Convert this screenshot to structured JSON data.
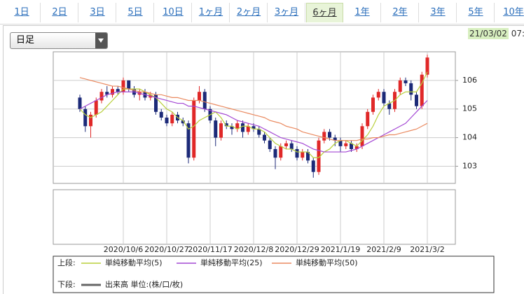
{
  "tabs": [
    {
      "label": "1日"
    },
    {
      "label": "2日"
    },
    {
      "label": "3日"
    },
    {
      "label": "5日"
    },
    {
      "label": "10日"
    },
    {
      "label": "1ヶ月"
    },
    {
      "label": "2ヶ月"
    },
    {
      "label": "3ヶ月"
    },
    {
      "label": "6ヶ月",
      "selected": true
    },
    {
      "label": "1年"
    },
    {
      "label": "2年"
    },
    {
      "label": "3年"
    },
    {
      "label": "5年"
    },
    {
      "label": "10年"
    }
  ],
  "dropdown": "日足",
  "timestamp": {
    "date": "21/03/02",
    "time": "07:"
  },
  "chart_data": {
    "type": "candlestick",
    "categories": [
      null,
      null,
      null,
      null,
      null,
      null,
      null,
      null,
      "2020/10/6",
      null,
      null,
      null,
      null,
      null,
      null,
      null,
      "2020/10/27",
      null,
      null,
      null,
      null,
      null,
      null,
      null,
      "2020/11/17",
      null,
      null,
      null,
      null,
      null,
      null,
      null,
      "2020/12/8",
      null,
      null,
      null,
      null,
      null,
      null,
      null,
      "2020/12/29",
      null,
      null,
      null,
      null,
      null,
      null,
      null,
      "2021/1/19",
      null,
      null,
      null,
      null,
      null,
      null,
      null,
      "2021/2/9",
      null,
      null,
      null,
      null,
      null,
      null,
      null,
      "2021/3/2"
    ],
    "open": [
      105.4,
      105.0,
      104.4,
      104.8,
      105.3,
      105.6,
      105.5,
      105.7,
      105.6,
      106.0,
      105.7,
      105.5,
      105.6,
      105.4,
      105.5,
      104.9,
      104.7,
      104.5,
      104.8,
      104.6,
      104.5,
      103.3,
      105.3,
      105.6,
      105.0,
      104.6,
      104.0,
      104.5,
      104.4,
      104.3,
      104.5,
      104.2,
      104.4,
      104.3,
      104.1,
      103.9,
      103.6,
      103.3,
      103.7,
      103.8,
      103.6,
      103.3,
      103.5,
      103.2,
      102.8,
      103.9,
      104.2,
      104.0,
      103.9,
      103.7,
      103.8,
      103.6,
      103.7,
      104.4,
      104.9,
      105.4,
      105.6,
      105.2,
      105.0,
      105.6,
      106.0,
      105.9,
      105.5,
      105.1,
      106.2
    ],
    "high": [
      105.5,
      105.1,
      104.9,
      105.4,
      105.7,
      105.8,
      105.8,
      105.8,
      106.1,
      106.0,
      105.8,
      105.7,
      105.7,
      105.6,
      105.6,
      105.0,
      104.8,
      104.9,
      104.9,
      104.7,
      104.6,
      105.4,
      105.8,
      105.7,
      105.1,
      104.7,
      104.6,
      104.6,
      104.5,
      104.6,
      104.6,
      104.5,
      104.5,
      104.4,
      104.2,
      104.0,
      103.7,
      103.8,
      103.9,
      103.9,
      103.7,
      103.6,
      103.6,
      103.3,
      104.0,
      104.3,
      104.3,
      104.1,
      104.0,
      103.9,
      103.9,
      103.8,
      104.5,
      105.0,
      105.5,
      105.7,
      105.7,
      105.3,
      105.7,
      106.1,
      106.1,
      106.0,
      105.6,
      106.3,
      106.9
    ],
    "low": [
      104.9,
      104.2,
      104.0,
      104.7,
      105.2,
      105.4,
      105.4,
      105.5,
      105.5,
      105.6,
      105.4,
      105.3,
      105.3,
      105.3,
      104.8,
      104.6,
      104.4,
      104.4,
      104.5,
      104.4,
      103.1,
      103.2,
      105.2,
      104.9,
      104.5,
      103.7,
      103.9,
      104.3,
      104.1,
      104.2,
      104.0,
      104.1,
      104.2,
      104.0,
      103.8,
      103.5,
      102.9,
      103.2,
      103.6,
      103.5,
      103.2,
      103.2,
      103.1,
      102.6,
      102.7,
      103.8,
      103.9,
      103.7,
      103.5,
      103.6,
      103.5,
      103.5,
      103.6,
      104.3,
      104.8,
      105.3,
      105.1,
      104.8,
      104.9,
      105.5,
      105.8,
      105.3,
      105.0,
      105.0,
      106.1
    ],
    "close": [
      105.0,
      104.4,
      104.8,
      105.3,
      105.6,
      105.5,
      105.7,
      105.6,
      106.0,
      105.7,
      105.5,
      105.6,
      105.4,
      105.5,
      104.9,
      104.7,
      104.5,
      104.8,
      104.6,
      104.5,
      103.3,
      105.3,
      105.6,
      105.0,
      104.6,
      104.0,
      104.5,
      104.4,
      104.3,
      104.5,
      104.2,
      104.4,
      104.3,
      104.1,
      103.9,
      103.6,
      103.3,
      103.7,
      103.8,
      103.6,
      103.3,
      103.5,
      103.2,
      102.8,
      103.9,
      104.2,
      104.0,
      103.9,
      103.7,
      103.8,
      103.6,
      103.7,
      104.4,
      104.9,
      105.4,
      105.6,
      105.2,
      105.0,
      105.6,
      106.0,
      105.9,
      105.5,
      105.1,
      106.2,
      106.8
    ],
    "up_color": "#e02828",
    "down_color": "#1c2a78",
    "series": [
      {
        "name": "単純移動平均(5)",
        "color": "#b8cf3a",
        "values": [
          105.0,
          104.8,
          104.7,
          104.8,
          104.9,
          105.1,
          105.3,
          105.5,
          105.7,
          105.7,
          105.7,
          105.7,
          105.6,
          105.5,
          105.4,
          105.2,
          105.0,
          104.9,
          104.7,
          104.6,
          104.3,
          104.4,
          104.6,
          104.7,
          104.8,
          104.9,
          104.7,
          104.4,
          104.4,
          104.3,
          104.4,
          104.4,
          104.3,
          104.3,
          104.2,
          104.0,
          103.8,
          103.7,
          103.6,
          103.6,
          103.5,
          103.5,
          103.5,
          103.3,
          103.3,
          103.5,
          103.6,
          103.8,
          103.9,
          103.9,
          103.8,
          103.7,
          103.9,
          104.1,
          104.4,
          104.8,
          105.1,
          105.2,
          105.3,
          105.5,
          105.6,
          105.6,
          105.6,
          105.9,
          106.3
        ]
      },
      {
        "name": "単純移動平均(25)",
        "color": "#a448d4",
        "values": [
          105.0,
          105.1,
          105.2,
          105.3,
          105.4,
          105.5,
          105.55,
          105.6,
          105.6,
          105.6,
          105.6,
          105.55,
          105.5,
          105.45,
          105.4,
          105.35,
          105.3,
          105.25,
          105.2,
          105.2,
          105.1,
          105.1,
          105.05,
          105.0,
          104.95,
          104.9,
          104.85,
          104.8,
          104.7,
          104.6,
          104.55,
          104.5,
          104.45,
          104.4,
          104.3,
          104.2,
          104.1,
          104.0,
          103.95,
          103.9,
          103.85,
          103.8,
          103.7,
          103.6,
          103.55,
          103.5,
          103.5,
          103.5,
          103.5,
          103.5,
          103.55,
          103.6,
          103.7,
          103.8,
          103.9,
          104.0,
          104.1,
          104.2,
          104.3,
          104.4,
          104.5,
          104.7,
          104.9,
          105.1,
          105.3
        ]
      },
      {
        "name": "単純移動平均(50)",
        "color": "#ea8a60",
        "values": [
          106.1,
          106.05,
          106.0,
          105.95,
          105.9,
          105.85,
          105.8,
          105.8,
          105.75,
          105.7,
          105.65,
          105.6,
          105.6,
          105.55,
          105.5,
          105.5,
          105.45,
          105.4,
          105.4,
          105.35,
          105.3,
          105.3,
          105.3,
          105.25,
          105.2,
          105.15,
          105.1,
          105.05,
          105.0,
          104.95,
          104.9,
          104.85,
          104.8,
          104.75,
          104.7,
          104.6,
          104.55,
          104.5,
          104.4,
          104.35,
          104.3,
          104.2,
          104.15,
          104.1,
          104.05,
          104.0,
          103.95,
          103.9,
          103.9,
          103.9,
          103.9,
          103.9,
          103.95,
          103.95,
          104.0,
          104.0,
          104.05,
          104.1,
          104.1,
          104.15,
          104.2,
          104.25,
          104.3,
          104.4,
          104.5
        ]
      }
    ],
    "ylim": [
      102.4,
      107.0
    ],
    "yticks": [
      103,
      104,
      105,
      106
    ],
    "grid": true,
    "upper_label": "上段:",
    "lower_panel": {
      "label": "下段:",
      "series_name": "出来高 単位:(株/口/枚)",
      "color": "#666666"
    }
  }
}
